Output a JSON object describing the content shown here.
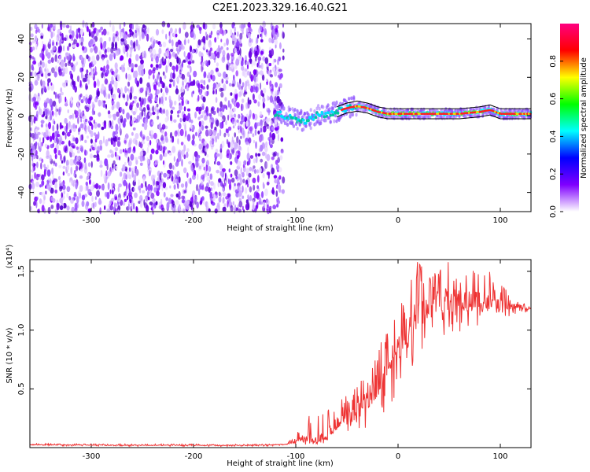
{
  "title": "C2E1.2023.329.16.40.G21",
  "chart_data": [
    {
      "type": "heatmap",
      "xlabel": "Height of straight line (km)",
      "ylabel": "Frequency (Hz)",
      "xlim": [
        -360,
        130
      ],
      "ylim": [
        -50,
        48
      ],
      "x_ticks": [
        -300,
        -200,
        -100,
        0,
        100
      ],
      "y_ticks": [
        -40,
        -20,
        0,
        20,
        40
      ],
      "colorbar": {
        "label": "Normalized spectral amplitude",
        "range": [
          0,
          1
        ],
        "ticks": [
          "0.0",
          "0.2",
          "0.4",
          "0.6",
          "0.8"
        ],
        "colormap": [
          "#ffffff",
          "#7f00ff",
          "#0000ff",
          "#00ffff",
          "#00ff00",
          "#ffff00",
          "#ff0000",
          "#ff0080"
        ]
      },
      "noise_region_x": [
        -360,
        -112
      ],
      "signal_trace": {
        "x": [
          -120,
          -110,
          -100,
          -90,
          -80,
          -70,
          -60,
          -50,
          -40,
          -30,
          -20,
          -10,
          0,
          20,
          40,
          60,
          80,
          90,
          100,
          130
        ],
        "y": [
          1,
          0,
          -2,
          -3,
          0,
          1,
          2,
          4,
          5,
          4,
          2,
          1,
          1,
          1,
          1,
          1,
          2,
          3,
          1,
          1
        ]
      }
    },
    {
      "type": "line",
      "xlabel": "Height of straight line (km)",
      "ylabel": "SNR (10 * v/v)",
      "y_multiplier": "(x10⁴)",
      "xlim": [
        -360,
        130
      ],
      "ylim": [
        0,
        1.6
      ],
      "x_ticks": [
        -300,
        -200,
        -100,
        0,
        100
      ],
      "y_ticks": [
        "0.5",
        "1.0",
        "1.5"
      ],
      "color": "#ee3333",
      "envelope": {
        "x": [
          -360,
          -250,
          -150,
          -110,
          -100,
          -90,
          -80,
          -70,
          -60,
          -50,
          -40,
          -30,
          -20,
          -10,
          0,
          10,
          20,
          30,
          40,
          50,
          60,
          70,
          80,
          90,
          100,
          110,
          120,
          130
        ],
        "base": [
          0.025,
          0.02,
          0.02,
          0.025,
          0.05,
          0.08,
          0.05,
          0.1,
          0.2,
          0.25,
          0.3,
          0.4,
          0.55,
          0.7,
          0.85,
          1.0,
          1.15,
          1.2,
          1.25,
          1.25,
          1.25,
          1.25,
          1.25,
          1.22,
          1.2,
          1.2,
          1.2,
          1.18
        ],
        "peak": [
          0.035,
          0.03,
          0.03,
          0.03,
          0.1,
          0.3,
          0.25,
          0.35,
          0.42,
          0.45,
          0.55,
          0.65,
          0.85,
          1.0,
          1.15,
          1.45,
          1.6,
          1.45,
          1.55,
          1.6,
          1.5,
          1.6,
          1.6,
          1.5,
          1.4,
          1.3,
          1.25,
          1.2
        ],
        "trough": [
          0.015,
          0.01,
          0.01,
          0.015,
          0.02,
          0.02,
          0.02,
          0.05,
          0.1,
          0.05,
          0.05,
          0.15,
          0.2,
          0.35,
          0.45,
          0.6,
          0.75,
          0.85,
          0.9,
          1.0,
          0.95,
          1.0,
          1.05,
          1.05,
          1.1,
          1.12,
          1.15,
          1.15
        ]
      }
    }
  ]
}
